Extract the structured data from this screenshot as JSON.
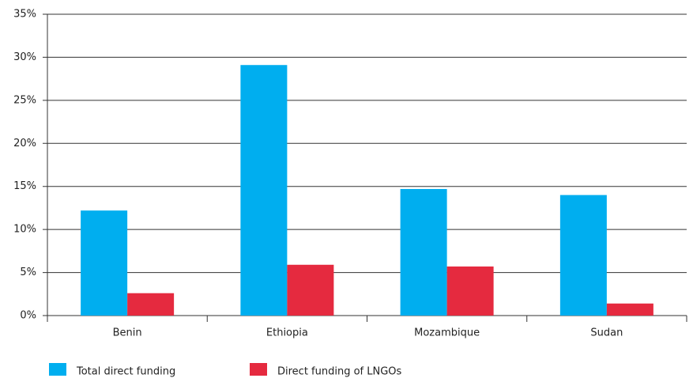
{
  "chart_data": {
    "type": "bar",
    "categories": [
      "Benin",
      "Ethiopia",
      "Mozambique",
      "Sudan"
    ],
    "series": [
      {
        "name": "Total direct funding",
        "color": "#00aeef",
        "values": [
          12.2,
          29.1,
          14.7,
          14.0
        ]
      },
      {
        "name": "Direct funding of LNGOs",
        "color": "#e52a3f",
        "values": [
          2.6,
          5.9,
          5.7,
          1.4
        ]
      }
    ],
    "ylim": [
      0,
      35
    ],
    "yticks": [
      {
        "value": 0,
        "label": "0%"
      },
      {
        "value": 5,
        "label": "5%"
      },
      {
        "value": 10,
        "label": "10%"
      },
      {
        "value": 15,
        "label": "15%"
      },
      {
        "value": 20,
        "label": "20%"
      },
      {
        "value": 25,
        "label": "25%"
      },
      {
        "value": 30,
        "label": "30%"
      },
      {
        "value": 35,
        "label": "35%"
      }
    ],
    "grid": true,
    "legend": "bottom-left"
  }
}
